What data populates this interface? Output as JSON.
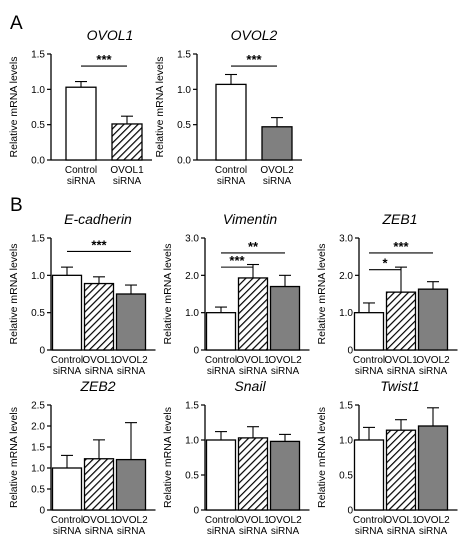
{
  "panel_labels": [
    "A",
    "B"
  ],
  "colors": {
    "ink": "#000000",
    "gray_fill": "#808080",
    "white_fill": "#ffffff"
  },
  "chart_data": [
    {
      "type": "bar",
      "panel": "A",
      "title": "OVOL1",
      "xlabel": "",
      "ylabel": "Relative mRNA levels",
      "categories": [
        "Control\nsiRNA",
        "OVOL1\nsiRNA"
      ],
      "values": [
        1.03,
        0.51
      ],
      "errors": [
        0.08,
        0.11
      ],
      "fills": [
        "white",
        "hatch"
      ],
      "ylim": [
        0,
        1.5
      ],
      "yticks": [
        "0.0",
        "0.5",
        "1.0",
        "1.5"
      ],
      "significance": [
        {
          "from": 0,
          "to": 1,
          "y": 1.33,
          "label": "***"
        }
      ]
    },
    {
      "type": "bar",
      "panel": "A",
      "title": "OVOL2",
      "xlabel": "",
      "ylabel": "Relative mRNA levels",
      "categories": [
        "Control\nsiRNA",
        "OVOL2\nsiRNA"
      ],
      "values": [
        1.07,
        0.47
      ],
      "errors": [
        0.14,
        0.13
      ],
      "fills": [
        "white",
        "gray"
      ],
      "ylim": [
        0,
        1.5
      ],
      "yticks": [
        "0.0",
        "0.5",
        "1.0",
        "1.5"
      ],
      "significance": [
        {
          "from": 0,
          "to": 1,
          "y": 1.33,
          "label": "***"
        }
      ]
    },
    {
      "type": "bar",
      "panel": "B",
      "title": "E-cadherin",
      "xlabel": "",
      "ylabel": "Relative mRNA levels",
      "categories": [
        "Control\nsiRNA",
        "OVOL1\nsiRNA",
        "OVOL2\nsiRNA"
      ],
      "values": [
        1.0,
        0.89,
        0.75
      ],
      "errors": [
        0.11,
        0.09,
        0.12
      ],
      "fills": [
        "white",
        "hatch",
        "gray"
      ],
      "ylim": [
        0,
        1.5
      ],
      "yticks": [
        "0",
        "0.5",
        "1.0",
        "1.5"
      ],
      "significance": [
        {
          "from": 0,
          "to": 2,
          "y": 1.32,
          "label": "***"
        }
      ]
    },
    {
      "type": "bar",
      "panel": "B",
      "title": "Vimentin",
      "xlabel": "",
      "ylabel": "Relative mRNA levels",
      "categories": [
        "Control\nsiRNA",
        "OVOL1\nsiRNA",
        "OVOL2\nsiRNA"
      ],
      "values": [
        1.0,
        1.93,
        1.7
      ],
      "errors": [
        0.15,
        0.36,
        0.3
      ],
      "fills": [
        "white",
        "hatch",
        "gray"
      ],
      "ylim": [
        0,
        3.0
      ],
      "yticks": [
        "0",
        "1.0",
        "2.0",
        "3.0"
      ],
      "significance": [
        {
          "from": 0,
          "to": 1,
          "y": 2.22,
          "label": "***"
        },
        {
          "from": 0,
          "to": 2,
          "y": 2.6,
          "label": "**"
        }
      ]
    },
    {
      "type": "bar",
      "panel": "B",
      "title": "ZEB1",
      "xlabel": "",
      "ylabel": "Relative mRNA levels",
      "categories": [
        "Control\nsiRNA",
        "OVOL1\nsiRNA",
        "OVOL2\nsiRNA"
      ],
      "values": [
        1.0,
        1.55,
        1.63
      ],
      "errors": [
        0.26,
        0.67,
        0.2
      ],
      "fills": [
        "white",
        "hatch",
        "gray"
      ],
      "ylim": [
        0,
        3.0
      ],
      "yticks": [
        "0",
        "1.0",
        "2.0",
        "3.0"
      ],
      "significance": [
        {
          "from": 0,
          "to": 1,
          "y": 2.15,
          "label": "*"
        },
        {
          "from": 0,
          "to": 2,
          "y": 2.6,
          "label": "***"
        }
      ]
    },
    {
      "type": "bar",
      "panel": "B",
      "title": "ZEB2",
      "xlabel": "",
      "ylabel": "Relative mRNA levels",
      "categories": [
        "Control\nsiRNA",
        "OVOL1\nsiRNA",
        "OVOL2\nsiRNA"
      ],
      "values": [
        1.0,
        1.22,
        1.2
      ],
      "errors": [
        0.3,
        0.45,
        0.88
      ],
      "fills": [
        "white",
        "hatch",
        "gray"
      ],
      "ylim": [
        0,
        2.5
      ],
      "yticks": [
        "0",
        "0.5",
        "1.0",
        "1.5",
        "2.0",
        "2.5"
      ],
      "significance": []
    },
    {
      "type": "bar",
      "panel": "B",
      "title": "Snail",
      "xlabel": "",
      "ylabel": "Relative mRNA levels",
      "categories": [
        "Control\nsiRNA",
        "OVOL1\nsiRNA",
        "OVOL2\nsiRNA"
      ],
      "values": [
        1.0,
        1.03,
        0.98
      ],
      "errors": [
        0.12,
        0.16,
        0.1
      ],
      "fills": [
        "white",
        "hatch",
        "gray"
      ],
      "ylim": [
        0,
        1.5
      ],
      "yticks": [
        "0",
        "0.5",
        "1.0",
        "1.5"
      ],
      "significance": []
    },
    {
      "type": "bar",
      "panel": "B",
      "title": "Twist1",
      "xlabel": "",
      "ylabel": "Relative mRNA levels",
      "categories": [
        "Control\nsiRNA",
        "OVOL1\nsiRNA",
        "OVOL2\nsiRNA"
      ],
      "values": [
        1.0,
        1.14,
        1.2
      ],
      "errors": [
        0.18,
        0.15,
        0.26
      ],
      "fills": [
        "white",
        "hatch",
        "gray"
      ],
      "ylim": [
        0,
        1.5
      ],
      "yticks": [
        "0",
        "0.5",
        "1.0",
        "1.5"
      ],
      "significance": []
    }
  ]
}
